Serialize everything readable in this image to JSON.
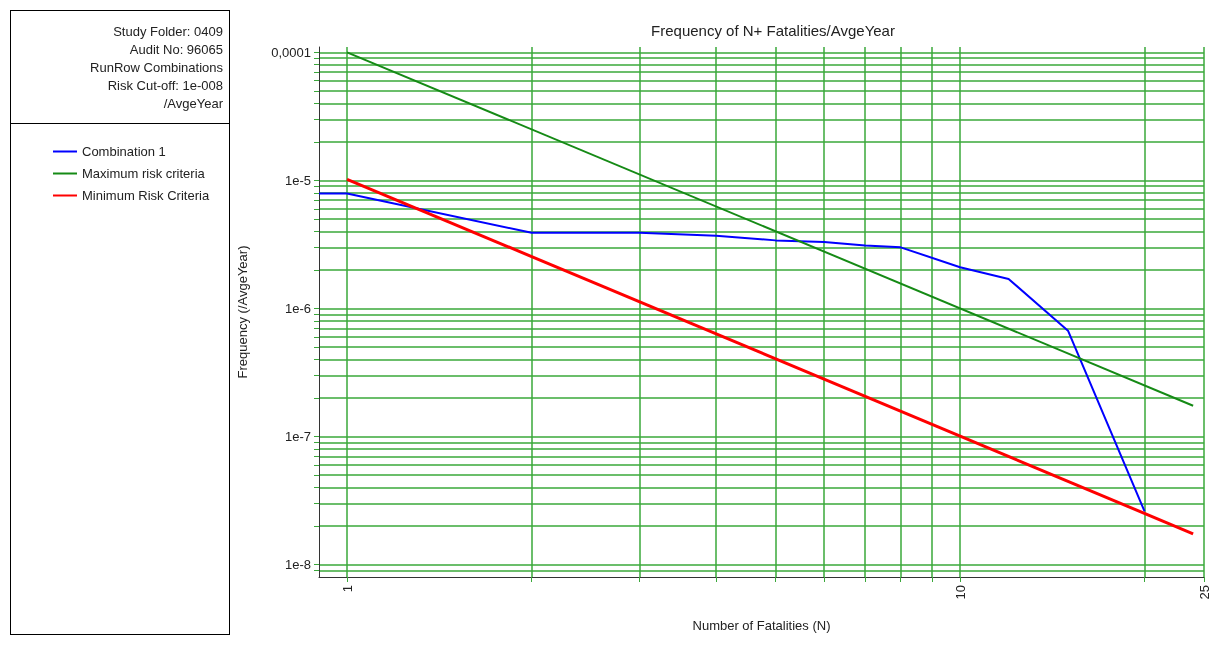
{
  "chart_data": {
    "type": "line",
    "title": "Frequency of N+ Fatalities/AvgeYear",
    "xlabel": "Number of Fatalities (N)",
    "ylabel": "Frequency (/AvgeYear)",
    "annotations": [
      "Study Folder: 0409",
      "Audit No: 96065",
      "RunRow Combinations",
      "Risk Cut-off: 1e-008",
      "/AvgeYear"
    ],
    "log": "xy",
    "grid": true,
    "legend": "left",
    "line_style": "solid",
    "marker": "none",
    "xlim": [
      0.9,
      25
    ],
    "xticks": [
      1,
      {
        "value": 2,
        "label": null
      },
      {
        "value": 3,
        "label": null
      },
      {
        "value": 4,
        "label": null
      },
      {
        "value": 5,
        "label": null
      },
      {
        "value": 6,
        "label": null
      },
      {
        "value": 7,
        "label": null
      },
      {
        "value": 8,
        "label": null
      },
      {
        "value": 9,
        "label": null
      },
      10,
      {
        "value": 20,
        "label": null
      },
      25
    ],
    "ylim": [
      8e-09,
      0.00011
    ],
    "yticks": [
      {
        "value": 9e-09,
        "label": null
      },
      {
        "value": 1e-08,
        "label": "1e-8"
      },
      {
        "value": 2e-08,
        "label": null
      },
      {
        "value": 3e-08,
        "label": null
      },
      {
        "value": 4e-08,
        "label": null
      },
      {
        "value": 5e-08,
        "label": null
      },
      {
        "value": 6e-08,
        "label": null
      },
      {
        "value": 7e-08,
        "label": null
      },
      {
        "value": 8e-08,
        "label": null
      },
      {
        "value": 9e-08,
        "label": null
      },
      {
        "value": 1e-07,
        "label": "1e-7"
      },
      {
        "value": 2e-07,
        "label": null
      },
      {
        "value": 3e-07,
        "label": null
      },
      {
        "value": 4e-07,
        "label": null
      },
      {
        "value": 5e-07,
        "label": null
      },
      {
        "value": 6e-07,
        "label": null
      },
      {
        "value": 7e-07,
        "label": null
      },
      {
        "value": 8e-07,
        "label": null
      },
      {
        "value": 9e-07,
        "label": null
      },
      {
        "value": 1e-06,
        "label": "1e-6"
      },
      {
        "value": 2e-06,
        "label": null
      },
      {
        "value": 3e-06,
        "label": null
      },
      {
        "value": 4e-06,
        "label": null
      },
      {
        "value": 5e-06,
        "label": null
      },
      {
        "value": 6e-06,
        "label": null
      },
      {
        "value": 7e-06,
        "label": null
      },
      {
        "value": 8e-06,
        "label": null
      },
      {
        "value": 9e-06,
        "label": null
      },
      {
        "value": 1e-05,
        "label": "1e-5"
      },
      {
        "value": 2e-05,
        "label": null
      },
      {
        "value": 3e-05,
        "label": null
      },
      {
        "value": 4e-05,
        "label": null
      },
      {
        "value": 5e-05,
        "label": null
      },
      {
        "value": 6e-05,
        "label": null
      },
      {
        "value": 7e-05,
        "label": null
      },
      {
        "value": 8e-05,
        "label": null
      },
      {
        "value": 9e-05,
        "label": null
      },
      {
        "value": 0.0001,
        "label": "0,0001"
      }
    ],
    "series": [
      {
        "name": "Combination 1",
        "color": "#0000ff",
        "x": [
          0.9,
          1,
          2,
          3,
          4,
          5,
          6,
          7,
          8,
          10,
          12,
          15,
          20
        ],
        "values": [
          7.9e-06,
          7.9e-06,
          3.9e-06,
          3.9e-06,
          3.7e-06,
          3.4e-06,
          3.3e-06,
          3.1e-06,
          3e-06,
          2.1e-06,
          1.7e-06,
          6.7e-07,
          2.6e-08
        ]
      },
      {
        "name": "Maximum risk criteria",
        "color": "#158a15",
        "x": [
          1,
          24
        ],
        "values": [
          0.0001,
          1.74e-07
        ]
      },
      {
        "name": "Minimum Risk Criteria",
        "color": "#ff0000",
        "x": [
          1,
          24
        ],
        "values": [
          1.02e-05,
          1.74e-08
        ]
      }
    ]
  }
}
